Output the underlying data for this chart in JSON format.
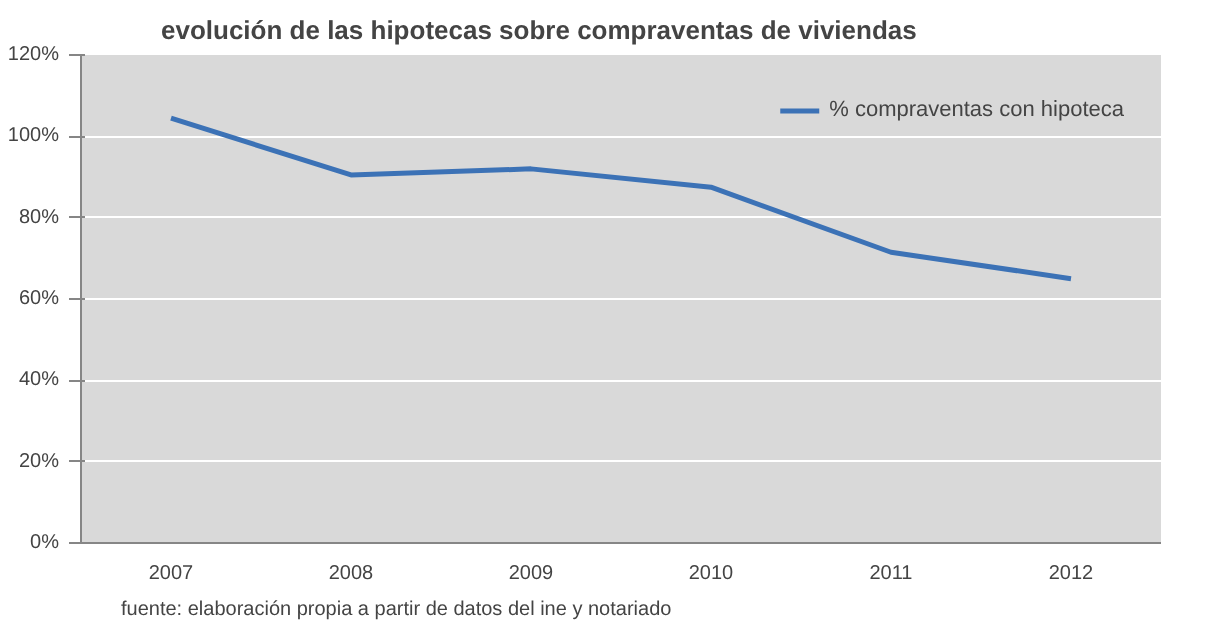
{
  "chart_data": {
    "type": "line",
    "title": "evolución de las hipotecas sobre compraventas de viviendas",
    "categories": [
      "2007",
      "2008",
      "2009",
      "2010",
      "2011",
      "2012"
    ],
    "series": [
      {
        "name": "% compraventas con hipoteca",
        "color": "#3c72b6",
        "values": [
          104.5,
          90.5,
          92,
          87.5,
          71.5,
          65
        ]
      }
    ],
    "ylim": [
      0,
      120
    ],
    "yticks": [
      {
        "value": 0,
        "label": "0%"
      },
      {
        "value": 20,
        "label": "20%"
      },
      {
        "value": 40,
        "label": "40%"
      },
      {
        "value": 60,
        "label": "60%"
      },
      {
        "value": 80,
        "label": "80%"
      },
      {
        "value": 100,
        "label": "100%"
      },
      {
        "value": 120,
        "label": "120%"
      }
    ],
    "grid": "y",
    "legend": "top right",
    "marker": "none",
    "line_style": "solid",
    "annotations": [
      "fuente: elaboración propia a partir de datos del ine y notariado"
    ]
  }
}
